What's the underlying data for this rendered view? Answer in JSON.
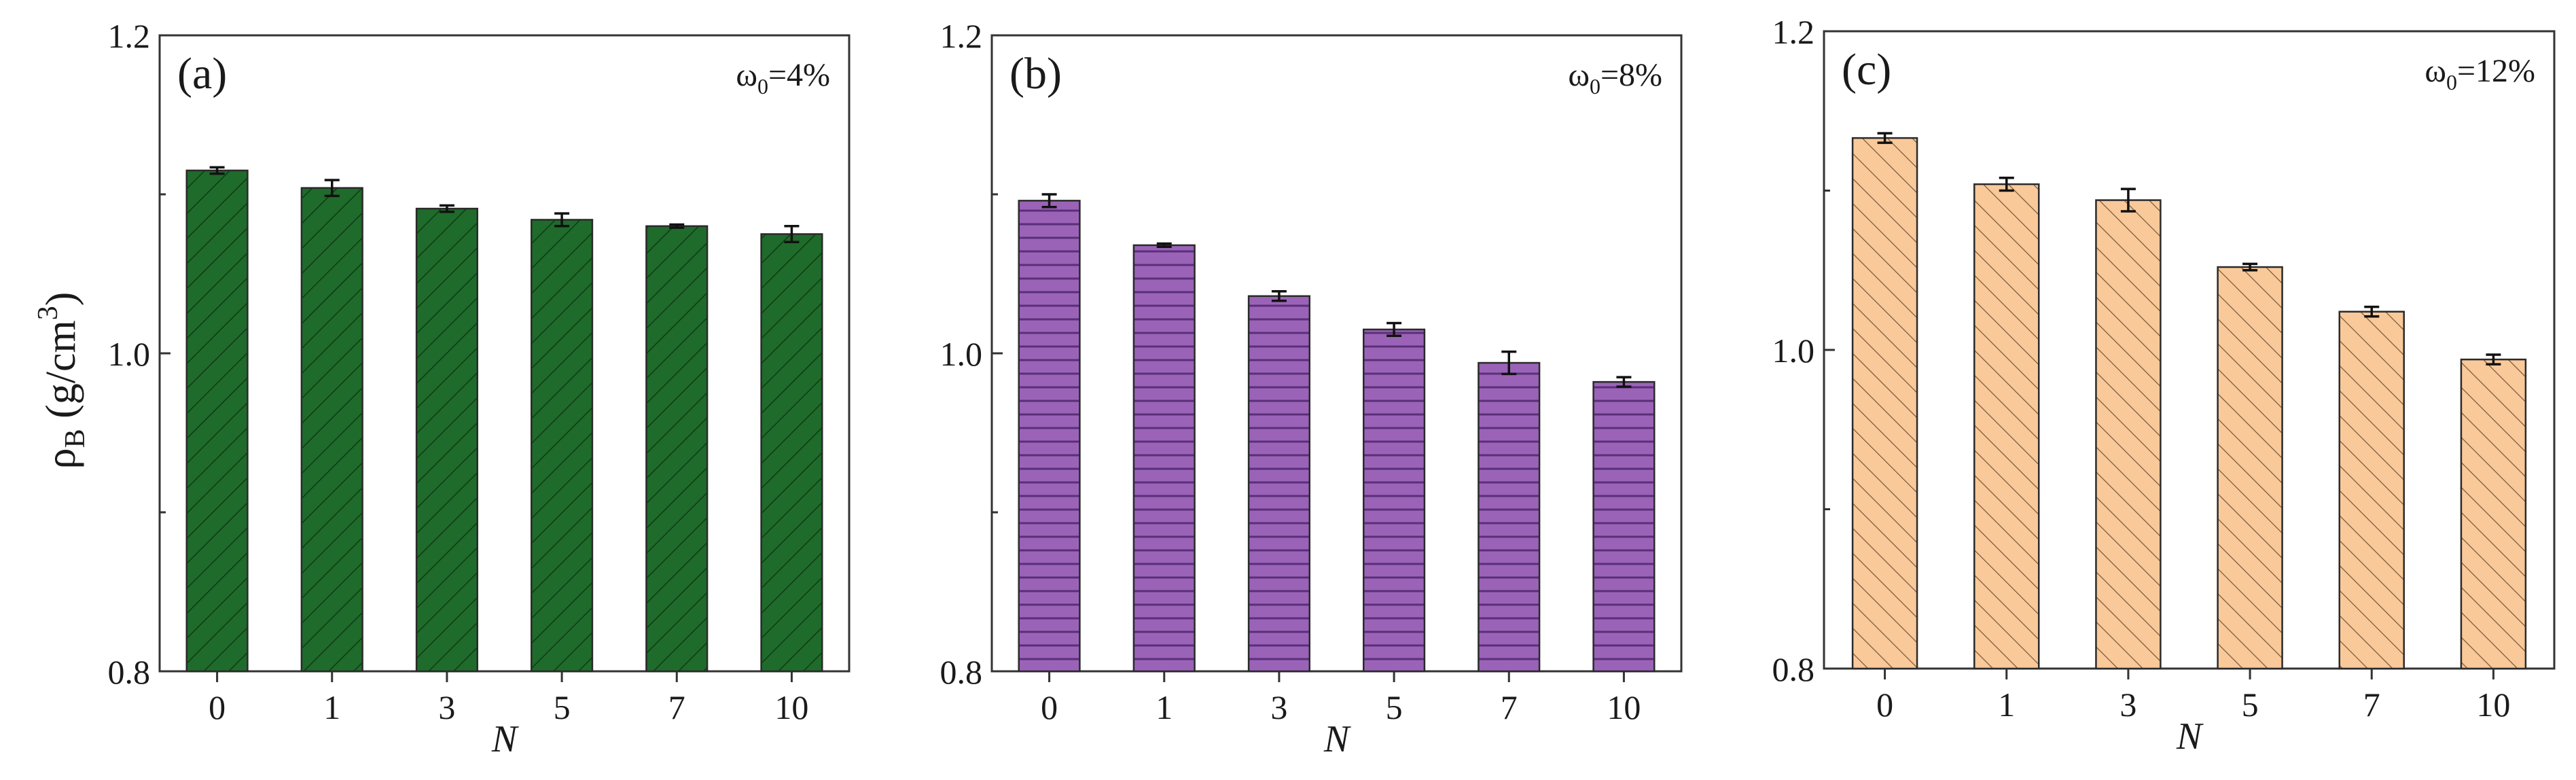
{
  "figure": {
    "ylabel": {
      "main": "ρ",
      "sub": "B",
      "unit": " (g/cm",
      "sup": "3",
      "close": ")"
    }
  },
  "chart_data": [
    {
      "type": "bar",
      "panel_label": "(a)",
      "annotation": {
        "main": "ω",
        "sub": "0",
        "rest": "=4%"
      },
      "categories": [
        "0",
        "1",
        "3",
        "5",
        "7",
        "10"
      ],
      "values": [
        1.115,
        1.104,
        1.091,
        1.084,
        1.08,
        1.075
      ],
      "errors": [
        0.002,
        0.005,
        0.002,
        0.004,
        0.001,
        0.005
      ],
      "xlabel": "N",
      "ylabel": "ρB (g/cm3)",
      "ylim": [
        0.8,
        1.2
      ],
      "yticks": [
        "0.8",
        "1.0",
        "1.2"
      ],
      "color": "#1f6b2b",
      "hatch": "diagonal-right"
    },
    {
      "type": "bar",
      "panel_label": "(b)",
      "annotation": {
        "main": "ω",
        "sub": "0",
        "rest": "=8%"
      },
      "categories": [
        "0",
        "1",
        "3",
        "5",
        "7",
        "10"
      ],
      "values": [
        1.096,
        1.068,
        1.036,
        1.015,
        0.994,
        0.982
      ],
      "errors": [
        0.004,
        0.001,
        0.003,
        0.004,
        0.007,
        0.003
      ],
      "xlabel": "N",
      "ylim": [
        0.8,
        1.2
      ],
      "yticks": [
        "0.8",
        "1.0",
        "1.2"
      ],
      "color": "#9a63b8",
      "hatch": "horizontal"
    },
    {
      "type": "bar",
      "panel_label": "(c)",
      "annotation": {
        "main": "ω",
        "sub": "0",
        "rest": "=12%"
      },
      "categories": [
        "0",
        "1",
        "3",
        "5",
        "7",
        "10"
      ],
      "values": [
        1.133,
        1.104,
        1.094,
        1.052,
        1.024,
        0.994
      ],
      "errors": [
        0.003,
        0.004,
        0.007,
        0.002,
        0.003,
        0.003
      ],
      "xlabel": "N",
      "ylim": [
        0.8,
        1.2
      ],
      "yticks": [
        "0.8",
        "1.0",
        "1.2"
      ],
      "color": "#f9c99a",
      "hatch": "diagonal-left"
    }
  ]
}
